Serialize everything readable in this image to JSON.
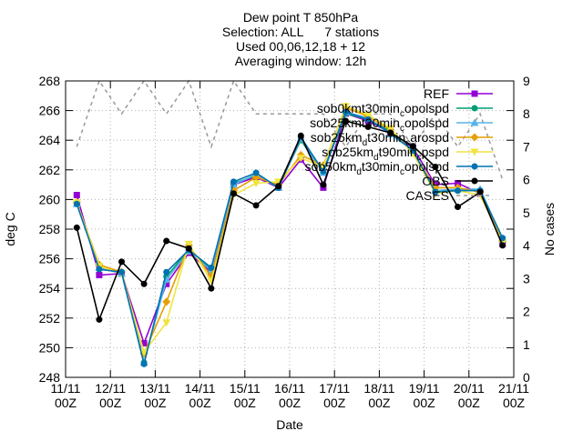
{
  "chart_data": {
    "type": "line",
    "title_lines": [
      "Dew point T 850hPa",
      "Selection: ALL      7 stations",
      "Used 00,06,12,18 + 12",
      "Averaging window: 12h"
    ],
    "xlabel": "Date",
    "ylabel": "deg C",
    "y2label": "No cases",
    "ylim": [
      248,
      268
    ],
    "y_ticks": [
      248,
      250,
      252,
      254,
      256,
      258,
      260,
      262,
      264,
      266,
      268
    ],
    "y2lim": [
      0,
      9
    ],
    "y2_ticks": [
      0,
      1,
      2,
      3,
      4,
      5,
      6,
      7,
      8,
      9
    ],
    "xlim": [
      0,
      10
    ],
    "x_ticks": [
      {
        "x": 0,
        "line1": "11/11",
        "line2": "00Z"
      },
      {
        "x": 1,
        "line1": "12/11",
        "line2": "00Z"
      },
      {
        "x": 2,
        "line1": "13/11",
        "line2": "00Z"
      },
      {
        "x": 3,
        "line1": "14/11",
        "line2": "00Z"
      },
      {
        "x": 4,
        "line1": "15/11",
        "line2": "00Z"
      },
      {
        "x": 5,
        "line1": "16/11",
        "line2": "00Z"
      },
      {
        "x": 6,
        "line1": "17/11",
        "line2": "00Z"
      },
      {
        "x": 7,
        "line1": "18/11",
        "line2": "00Z"
      },
      {
        "x": 8,
        "line1": "19/11",
        "line2": "00Z"
      },
      {
        "x": 9,
        "line1": "20/11",
        "line2": "00Z"
      },
      {
        "x": 10,
        "line1": "21/11",
        "line2": "00Z"
      }
    ],
    "x": [
      0.25,
      0.75,
      1.25,
      1.75,
      2.25,
      2.75,
      3.25,
      3.75,
      4.25,
      4.75,
      5.25,
      5.75,
      6.25,
      6.75,
      7.25,
      7.75,
      8.25,
      8.75,
      9.25,
      9.75
    ],
    "grid": true,
    "legend_position": "top-right",
    "series": [
      {
        "name": "REF",
        "label_parts": [
          [
            "REF",
            ""
          ]
        ],
        "color": "#9400d3",
        "marker": "square",
        "values": [
          260.3,
          254.9,
          255.0,
          250.3,
          254.3,
          256.4,
          255.1,
          261.0,
          261.5,
          260.8,
          262.7,
          260.8,
          265.8,
          265.3,
          264.5,
          263.5,
          261.0,
          261.1,
          260.4,
          257.0
        ]
      },
      {
        "name": "sob0km_t30min_c opolspd",
        "label_parts": [
          [
            "sob0km",
            ""
          ],
          [
            "t30min",
            ""
          ],
          [
            "c",
            "sub"
          ],
          [
            "opolspd",
            ""
          ]
        ],
        "color": "#009e73",
        "marker": "circle",
        "values": [
          259.8,
          255.3,
          255.1,
          249.0,
          254.8,
          256.6,
          255.3,
          261.1,
          261.6,
          260.9,
          264.0,
          261.8,
          265.8,
          265.4,
          264.6,
          263.3,
          260.6,
          260.6,
          260.6,
          257.3
        ]
      },
      {
        "name": "sob25km_t30min_c opolspd",
        "label_parts": [
          [
            "sob25km",
            ""
          ],
          [
            "t30min",
            ""
          ],
          [
            "c",
            "sub"
          ],
          [
            "opolspd",
            ""
          ]
        ],
        "color": "#56b4e9",
        "marker": "triangle",
        "values": [
          259.7,
          255.4,
          255.0,
          249.0,
          254.6,
          256.5,
          255.2,
          261.0,
          261.7,
          260.8,
          264.1,
          261.8,
          265.9,
          265.5,
          264.4,
          263.3,
          260.6,
          260.7,
          260.7,
          257.3
        ]
      },
      {
        "name": "sob25km_d t30min_c arospd",
        "label_parts": [
          [
            "sob25km",
            ""
          ],
          [
            "d",
            "sub"
          ],
          [
            "t30min",
            ""
          ],
          [
            "c",
            "sub"
          ],
          [
            "arospd",
            ""
          ]
        ],
        "color": "#e69f00",
        "marker": "diamond",
        "values": [
          259.8,
          255.6,
          255.1,
          249.6,
          253.1,
          256.9,
          254.8,
          260.6,
          261.5,
          261.0,
          263.0,
          262.3,
          266.2,
          265.6,
          264.7,
          263.2,
          260.8,
          260.8,
          260.5,
          257.2
        ]
      },
      {
        "name": "sob25km_d t90min_c pspd",
        "label_parts": [
          [
            "sob25km",
            ""
          ],
          [
            "d",
            "sub"
          ],
          [
            "t90min",
            ""
          ],
          [
            "c",
            "sub"
          ],
          [
            "pspd",
            ""
          ]
        ],
        "color": "#f0e442",
        "marker": "triangle-down",
        "values": [
          259.8,
          255.5,
          255.0,
          249.7,
          251.7,
          257.0,
          254.5,
          260.3,
          261.1,
          261.2,
          262.8,
          262.2,
          266.3,
          265.7,
          264.8,
          263.1,
          260.4,
          260.6,
          260.3,
          257.1
        ]
      },
      {
        "name": "sob50km_d t30min_c opolspd",
        "label_parts": [
          [
            "sob50km",
            ""
          ],
          [
            "d",
            "sub"
          ],
          [
            "t30min",
            ""
          ],
          [
            "c",
            "sub"
          ],
          [
            "opolspd",
            ""
          ]
        ],
        "color": "#0072b2",
        "marker": "circle",
        "values": [
          259.7,
          255.3,
          255.1,
          248.9,
          255.1,
          256.6,
          255.4,
          261.2,
          261.8,
          260.8,
          264.2,
          261.9,
          265.9,
          265.4,
          264.5,
          263.3,
          260.5,
          260.6,
          260.6,
          257.4
        ]
      },
      {
        "name": "OBS",
        "label_parts": [
          [
            "OBS",
            ""
          ]
        ],
        "color": "#000000",
        "marker": "circle",
        "values": [
          258.1,
          251.9,
          255.8,
          254.3,
          257.2,
          256.7,
          254.0,
          260.4,
          259.6,
          260.9,
          264.3,
          261.0,
          265.3,
          264.9,
          264.5,
          263.6,
          262.2,
          259.5,
          260.5,
          256.9
        ]
      },
      {
        "name": "CASES",
        "label_parts": [
          [
            "CASES",
            ""
          ]
        ],
        "color": "#999999",
        "marker": "none",
        "dashed": true,
        "axis": "y2",
        "values": [
          7,
          9,
          8,
          9,
          8,
          9,
          7,
          9,
          8,
          8,
          8,
          8,
          7,
          8,
          8,
          7,
          8,
          7,
          8,
          6
        ]
      }
    ]
  }
}
